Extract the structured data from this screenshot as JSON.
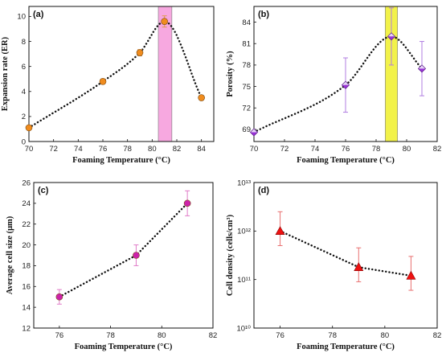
{
  "colors": {
    "orange_marker": "#f08c1e",
    "purple_marker": "#9a32d8",
    "magenta_marker": "#cc22aa",
    "red_marker": "#ee1111",
    "pink_band": "#f7a8e0",
    "yellow_band": "#f2f24a",
    "errorbar_orange": "#e09a50",
    "errorbar_purple": "#b07de0",
    "errorbar_magenta": "#e07ac8",
    "errorbar_red": "#e87070"
  },
  "chart_data": [
    {
      "panel_label": "(a)",
      "type": "scatter",
      "xlabel": "Foaming Temperature (°C)",
      "ylabel": "Expansion rate (ER)",
      "xlim": [
        70,
        85
      ],
      "ylim": [
        0,
        10.8
      ],
      "xticks": [
        70,
        72,
        74,
        76,
        78,
        80,
        82,
        84
      ],
      "yticks": [
        0,
        2,
        4,
        6,
        8,
        10
      ],
      "highlight_band": [
        80.5,
        81.6
      ],
      "x": [
        70,
        76,
        79,
        81,
        84
      ],
      "y": [
        1.1,
        4.8,
        7.1,
        9.6,
        3.5
      ],
      "errors": [
        0.1,
        0.2,
        0.25,
        0.45,
        0.15
      ],
      "marker": "circle"
    },
    {
      "panel_label": "(b)",
      "type": "scatter",
      "xlabel": "Foaming Temperature (°C)",
      "ylabel": "Porosity (%)",
      "xlim": [
        70,
        82
      ],
      "ylim": [
        67.3,
        86.2
      ],
      "xticks": [
        70,
        72,
        74,
        76,
        78,
        80,
        82
      ],
      "yticks": [
        69,
        72,
        75,
        78,
        81,
        84
      ],
      "highlight_band": [
        78.6,
        79.4
      ],
      "x": [
        70,
        76,
        79,
        81
      ],
      "y": [
        68.6,
        75.2,
        82.0,
        77.5
      ],
      "errors": [
        0.2,
        3.8,
        4.0,
        3.8
      ],
      "marker": "half-diamond"
    },
    {
      "panel_label": "(c)",
      "type": "scatter",
      "xlabel": "Foaming Temperature (°C)",
      "ylabel": "Average cell size (μm)",
      "xlim": [
        75,
        82
      ],
      "ylim": [
        12,
        26
      ],
      "xticks": [
        76,
        78,
        80,
        82
      ],
      "yticks": [
        12,
        14,
        16,
        18,
        20,
        22,
        24,
        26
      ],
      "x": [
        76,
        79,
        81
      ],
      "y": [
        15.0,
        19.0,
        24.0
      ],
      "errors": [
        0.7,
        1.0,
        1.2
      ],
      "marker": "circle"
    },
    {
      "panel_label": "(d)",
      "type": "scatter",
      "xlabel": "Foaming Temperature (°C)",
      "ylabel": "Cell density (cells/cm³)",
      "xlim": [
        75,
        82
      ],
      "ylim": [
        10000000000,
        10000000000000
      ],
      "yscale": "log",
      "xticks": [
        76,
        78,
        80,
        82
      ],
      "yticks": [
        "10^10",
        "10^11",
        "10^12",
        "10^13"
      ],
      "x": [
        76,
        79,
        81
      ],
      "y": [
        1000000000000,
        180000000000,
        120000000000
      ],
      "error_low": [
        500000000000,
        90000000000,
        60000000000
      ],
      "error_high": [
        1500000000000,
        270000000000,
        180000000000
      ],
      "marker": "triangle"
    }
  ]
}
